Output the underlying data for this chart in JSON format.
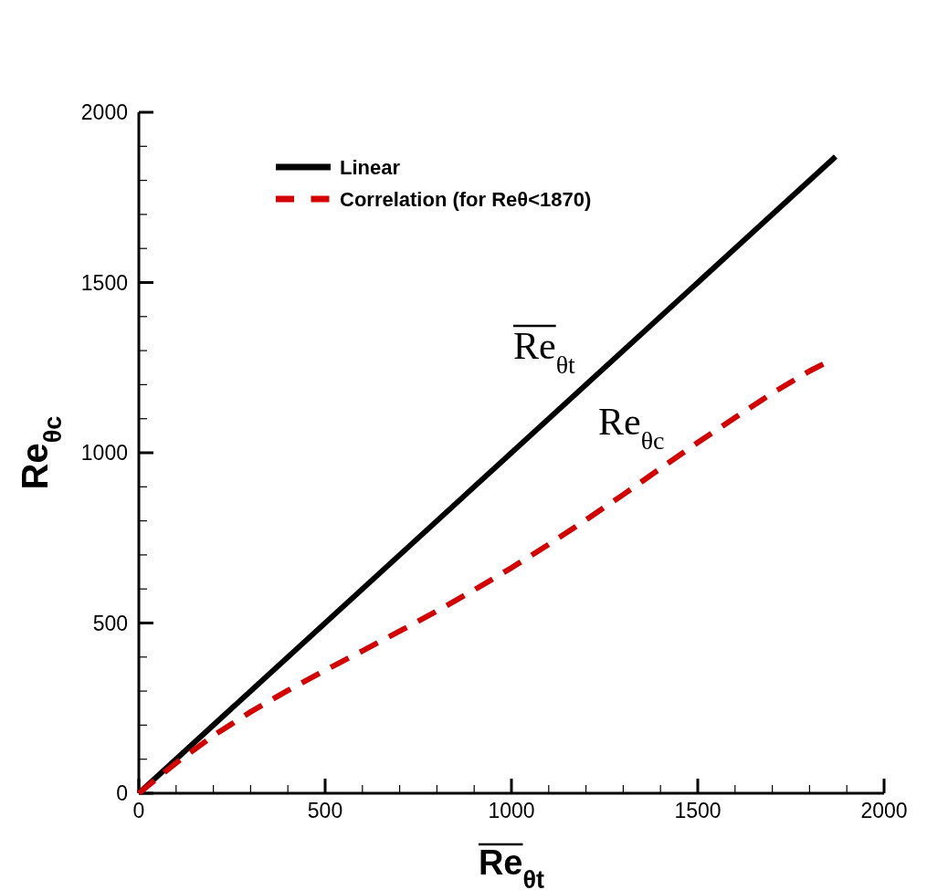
{
  "chart_data": {
    "type": "line",
    "xlabel": "Re$_{θt}$",
    "ylabel": "Re$_{θc}$",
    "xlim": [
      0,
      2000
    ],
    "ylim": [
      0,
      2000
    ],
    "xticks": [
      0,
      {
        "value": 100,
        "label": null
      },
      {
        "value": 200,
        "label": null
      },
      {
        "value": 300,
        "label": null
      },
      {
        "value": 400,
        "label": null
      },
      500,
      {
        "value": 600,
        "label": null
      },
      {
        "value": 700,
        "label": null
      },
      {
        "value": 800,
        "label": null
      },
      {
        "value": 900,
        "label": null
      },
      1000,
      {
        "value": 1100,
        "label": null
      },
      {
        "value": 1200,
        "label": null
      },
      {
        "value": 1300,
        "label": null
      },
      {
        "value": 1400,
        "label": null
      },
      1500,
      {
        "value": 1600,
        "label": null
      },
      {
        "value": 1700,
        "label": null
      },
      {
        "value": 1800,
        "label": null
      },
      {
        "value": 1900,
        "label": null
      },
      2000
    ],
    "yticks": [
      0,
      {
        "value": 100,
        "label": null
      },
      {
        "value": 200,
        "label": null
      },
      {
        "value": 300,
        "label": null
      },
      {
        "value": 400,
        "label": null
      },
      500,
      {
        "value": 600,
        "label": null
      },
      {
        "value": 700,
        "label": null
      },
      {
        "value": 800,
        "label": null
      },
      {
        "value": 900,
        "label": null
      },
      1000,
      {
        "value": 1100,
        "label": null
      },
      {
        "value": 1200,
        "label": null
      },
      {
        "value": 1300,
        "label": null
      },
      {
        "value": 1400,
        "label": null
      },
      1500,
      {
        "value": 1600,
        "label": null
      },
      {
        "value": 1700,
        "label": null
      },
      {
        "value": 1800,
        "label": null
      },
      {
        "value": 1900,
        "label": null
      },
      2000
    ],
    "grid": false,
    "legend": "top left",
    "series": [
      {
        "name": "Linear",
        "color": "#000000",
        "line_style": "solid",
        "x": [
          0,
          1870
        ],
        "values": [
          0,
          1870
        ]
      },
      {
        "name": "Correlation (for Reθ<1870)",
        "color": "#d40000",
        "line_style": "dashed",
        "x": [
          0,
          100,
          200,
          300,
          400,
          500,
          600,
          700,
          800,
          900,
          1000,
          1100,
          1200,
          1300,
          1400,
          1500,
          1600,
          1700,
          1800,
          1845
        ],
        "values": [
          0,
          89,
          169,
          239,
          302,
          361,
          418,
          476,
          535,
          597,
          662,
          731,
          803,
          877,
          954,
          1030,
          1103,
          1175,
          1240,
          1265
        ]
      }
    ],
    "annotations": [
      "Re$_{θt}$",
      "Re$_{θc}$"
    ]
  }
}
